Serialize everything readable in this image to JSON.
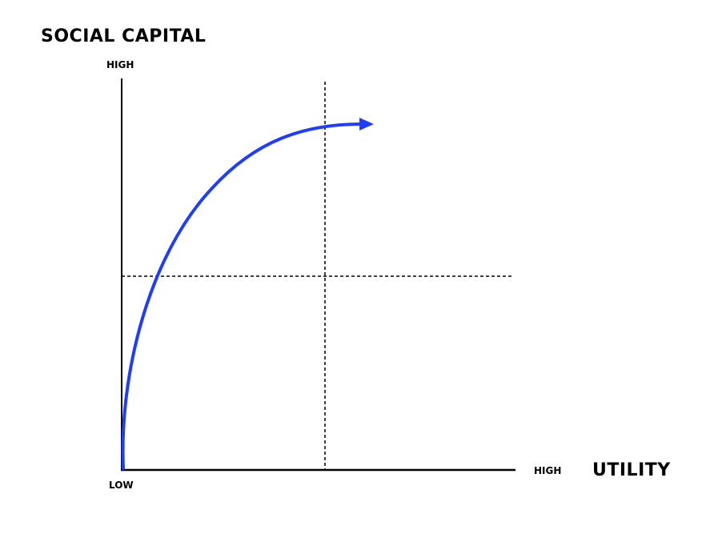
{
  "diagram": {
    "y_axis_title": "SOCIAL CAPITAL",
    "y_axis_high": "HIGH",
    "origin_label": "LOW",
    "x_axis_high": "HIGH",
    "x_axis_title": "UTILITY",
    "curve_color": "#1f3dff",
    "axis_color": "#000000",
    "divider_style": "dashed"
  }
}
